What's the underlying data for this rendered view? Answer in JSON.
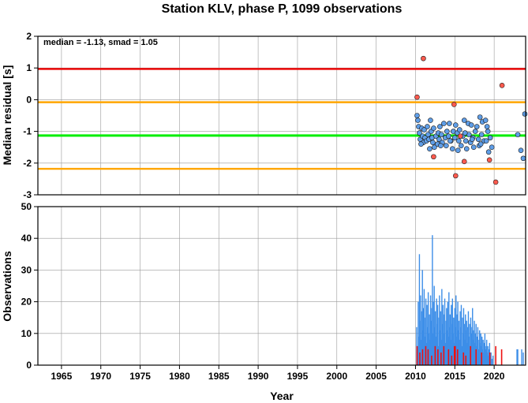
{
  "chart_data": [
    {
      "type": "scatter",
      "title": "Station KLV, phase P, 1099 observations",
      "ylabel": "Median residual [s]",
      "annotation": "median = -1.13, smad = 1.05",
      "xlim": [
        1962,
        2024
      ],
      "ylim": [
        -3,
        2
      ],
      "yticks": [
        "-3",
        "-2",
        "-1",
        "0",
        "1",
        "2"
      ],
      "grid": true,
      "reference_lines": [
        {
          "y": -1.13,
          "color": "#00ee00"
        },
        {
          "y": 0.97,
          "color": "#ee0000"
        },
        {
          "y": -0.08,
          "color": "#ffa500"
        },
        {
          "y": -2.18,
          "color": "#ffa500"
        }
      ],
      "series": [
        {
          "color": "#5f9ee8",
          "points": [
            [
              2010.2,
              -0.5
            ],
            [
              2010.3,
              -0.65
            ],
            [
              2010.4,
              -0.85
            ],
            [
              2010.5,
              -1.05
            ],
            [
              2010.6,
              -1.25
            ],
            [
              2010.8,
              -0.9
            ],
            [
              2010.9,
              -1.15
            ],
            [
              2011.0,
              -1.35
            ],
            [
              2011.1,
              -0.95
            ],
            [
              2011.2,
              -1.2
            ],
            [
              2011.4,
              -1.3
            ],
            [
              2011.5,
              -0.85
            ],
            [
              2011.6,
              -1.1
            ],
            [
              2011.7,
              -1.25
            ],
            [
              2011.9,
              -0.65
            ],
            [
              2012.0,
              -1.0
            ],
            [
              2012.1,
              -1.2
            ],
            [
              2012.3,
              -0.9
            ],
            [
              2012.4,
              -1.5
            ],
            [
              2012.6,
              -1.15
            ],
            [
              2012.8,
              -1.4
            ],
            [
              2012.9,
              -1.05
            ],
            [
              2013.0,
              -1.25
            ],
            [
              2013.1,
              -0.85
            ],
            [
              2013.3,
              -1.1
            ],
            [
              2013.4,
              -1.35
            ],
            [
              2013.6,
              -0.75
            ],
            [
              2013.8,
              -1.2
            ],
            [
              2013.9,
              -1.45
            ],
            [
              2014.0,
              -1.0
            ],
            [
              2014.2,
              -1.15
            ],
            [
              2014.3,
              -0.75
            ],
            [
              2014.5,
              -1.3
            ],
            [
              2014.7,
              -1.55
            ],
            [
              2014.8,
              -1.0
            ],
            [
              2015.0,
              -1.2
            ],
            [
              2015.1,
              -0.8
            ],
            [
              2015.3,
              -1.05
            ],
            [
              2015.5,
              -1.3
            ],
            [
              2015.6,
              -0.95
            ],
            [
              2015.8,
              -1.45
            ],
            [
              2016.0,
              -1.15
            ],
            [
              2016.2,
              -0.65
            ],
            [
              2016.4,
              -1.3
            ],
            [
              2016.5,
              -1.55
            ],
            [
              2016.7,
              -0.75
            ],
            [
              2016.8,
              -1.1
            ],
            [
              2017.0,
              -1.35
            ],
            [
              2017.1,
              -0.8
            ],
            [
              2017.3,
              -1.2
            ],
            [
              2017.4,
              -1.5
            ],
            [
              2017.6,
              -1.0
            ],
            [
              2017.8,
              -0.85
            ],
            [
              2018.0,
              -1.25
            ],
            [
              2018.1,
              -1.45
            ],
            [
              2018.2,
              -0.55
            ],
            [
              2018.4,
              -1.1
            ],
            [
              2018.5,
              -0.7
            ],
            [
              2018.7,
              -1.3
            ],
            [
              2018.9,
              -0.65
            ],
            [
              2019.1,
              -0.85
            ],
            [
              2019.2,
              -1.0
            ],
            [
              2019.3,
              -1.65
            ],
            [
              2019.5,
              -1.2
            ],
            [
              2019.7,
              -1.5
            ],
            [
              2010.7,
              -1.4
            ],
            [
              2011.8,
              -1.55
            ],
            [
              2012.2,
              -1.35
            ],
            [
              2013.2,
              -1.45
            ],
            [
              2014.4,
              -1.3
            ],
            [
              2015.4,
              -1.6
            ],
            [
              2016.3,
              -1.05
            ],
            [
              2017.2,
              -1.25
            ],
            [
              2018.3,
              -1.4
            ],
            [
              2019.0,
              -1.3
            ],
            [
              2023.0,
              -1.1
            ],
            [
              2023.4,
              -1.6
            ],
            [
              2023.7,
              -1.85
            ],
            [
              2023.9,
              -0.45
            ]
          ]
        },
        {
          "color": "#ff5a4e",
          "points": [
            [
              2010.2,
              0.08
            ],
            [
              2011.0,
              1.3
            ],
            [
              2012.3,
              -1.8
            ],
            [
              2014.9,
              -0.15
            ],
            [
              2015.1,
              -2.4
            ],
            [
              2016.2,
              -1.95
            ],
            [
              2019.4,
              -1.9
            ],
            [
              2020.2,
              -2.6
            ],
            [
              2021.0,
              0.45
            ],
            [
              2015.7,
              -1.15
            ]
          ]
        }
      ]
    },
    {
      "type": "bar",
      "ylabel": "Observations",
      "xlabel": "Year",
      "xlim": [
        1962,
        2024
      ],
      "ylim": [
        0,
        50
      ],
      "xticks": [
        "1965",
        "1970",
        "1975",
        "1980",
        "1985",
        "1990",
        "1995",
        "2000",
        "2005",
        "2010",
        "2015",
        "2020"
      ],
      "yticks": [
        "0",
        "10",
        "20",
        "30",
        "40",
        "50"
      ],
      "grid": true,
      "colors": {
        "blue": "#3d8ee8",
        "red": "#ee1111"
      },
      "blue_bars": [
        [
          2010.15,
          12
        ],
        [
          2010.25,
          6
        ],
        [
          2010.35,
          20
        ],
        [
          2010.42,
          9
        ],
        [
          2010.5,
          35
        ],
        [
          2010.58,
          14
        ],
        [
          2010.65,
          22
        ],
        [
          2010.72,
          8
        ],
        [
          2010.8,
          17
        ],
        [
          2010.88,
          30
        ],
        [
          2010.95,
          11
        ],
        [
          2011.02,
          18
        ],
        [
          2011.1,
          24
        ],
        [
          2011.18,
          9
        ],
        [
          2011.25,
          15
        ],
        [
          2011.32,
          21
        ],
        [
          2011.4,
          7
        ],
        [
          2011.47,
          19
        ],
        [
          2011.55,
          12
        ],
        [
          2011.62,
          23
        ],
        [
          2011.7,
          10
        ],
        [
          2011.78,
          16
        ],
        [
          2011.85,
          8
        ],
        [
          2011.92,
          22
        ],
        [
          2012.0,
          14
        ],
        [
          2012.08,
          18
        ],
        [
          2012.15,
          41
        ],
        [
          2012.22,
          10
        ],
        [
          2012.3,
          20
        ],
        [
          2012.38,
          25
        ],
        [
          2012.45,
          12
        ],
        [
          2012.52,
          17
        ],
        [
          2012.6,
          9
        ],
        [
          2012.68,
          21
        ],
        [
          2012.75,
          13
        ],
        [
          2012.82,
          19
        ],
        [
          2012.9,
          6
        ],
        [
          2012.98,
          15
        ],
        [
          2013.05,
          22
        ],
        [
          2013.12,
          11
        ],
        [
          2013.2,
          17
        ],
        [
          2013.28,
          8
        ],
        [
          2013.35,
          24
        ],
        [
          2013.42,
          13
        ],
        [
          2013.5,
          19
        ],
        [
          2013.58,
          10
        ],
        [
          2013.65,
          16
        ],
        [
          2013.72,
          21
        ],
        [
          2013.8,
          7
        ],
        [
          2013.88,
          14
        ],
        [
          2013.95,
          18
        ],
        [
          2014.02,
          11
        ],
        [
          2014.1,
          20
        ],
        [
          2014.18,
          9
        ],
        [
          2014.25,
          23
        ],
        [
          2014.32,
          12
        ],
        [
          2014.4,
          16
        ],
        [
          2014.48,
          8
        ],
        [
          2014.55,
          19
        ],
        [
          2014.62,
          13
        ],
        [
          2014.7,
          21
        ],
        [
          2014.78,
          10
        ],
        [
          2014.85,
          15
        ],
        [
          2014.92,
          7
        ],
        [
          2015.0,
          18
        ],
        [
          2015.08,
          12
        ],
        [
          2015.15,
          22
        ],
        [
          2015.22,
          9
        ],
        [
          2015.3,
          16
        ],
        [
          2015.38,
          20
        ],
        [
          2015.45,
          11
        ],
        [
          2015.52,
          14
        ],
        [
          2015.6,
          8
        ],
        [
          2015.68,
          17
        ],
        [
          2015.75,
          12
        ],
        [
          2015.82,
          19
        ],
        [
          2015.9,
          6
        ],
        [
          2015.98,
          15
        ],
        [
          2016.05,
          10
        ],
        [
          2016.12,
          18
        ],
        [
          2016.2,
          13
        ],
        [
          2016.28,
          8
        ],
        [
          2016.35,
          16
        ],
        [
          2016.42,
          11
        ],
        [
          2016.5,
          14
        ],
        [
          2016.58,
          7
        ],
        [
          2016.65,
          12
        ],
        [
          2016.72,
          17
        ],
        [
          2016.8,
          9
        ],
        [
          2016.88,
          13
        ],
        [
          2016.95,
          6
        ],
        [
          2017.02,
          15
        ],
        [
          2017.1,
          10
        ],
        [
          2017.18,
          12
        ],
        [
          2017.25,
          18
        ],
        [
          2017.32,
          8
        ],
        [
          2017.4,
          11
        ],
        [
          2017.48,
          14
        ],
        [
          2017.55,
          7
        ],
        [
          2017.62,
          10
        ],
        [
          2017.7,
          13
        ],
        [
          2017.78,
          6
        ],
        [
          2017.85,
          9
        ],
        [
          2017.92,
          12
        ],
        [
          2018.0,
          5
        ],
        [
          2018.08,
          8
        ],
        [
          2018.15,
          11
        ],
        [
          2018.22,
          7
        ],
        [
          2018.3,
          10
        ],
        [
          2018.38,
          6
        ],
        [
          2018.45,
          9
        ],
        [
          2018.52,
          5
        ],
        [
          2018.6,
          8
        ],
        [
          2018.68,
          4
        ],
        [
          2018.75,
          7
        ],
        [
          2018.82,
          10
        ],
        [
          2018.9,
          5
        ],
        [
          2018.98,
          6
        ],
        [
          2019.05,
          8
        ],
        [
          2019.12,
          4
        ],
        [
          2019.2,
          6
        ],
        [
          2019.28,
          3
        ],
        [
          2019.35,
          5
        ],
        [
          2019.42,
          7
        ],
        [
          2019.5,
          3
        ],
        [
          2019.6,
          4
        ],
        [
          2019.7,
          2
        ],
        [
          2019.85,
          3
        ],
        [
          2022.9,
          5
        ],
        [
          2023.0,
          5
        ],
        [
          2023.5,
          5
        ],
        [
          2023.7,
          4
        ]
      ],
      "red_bars": [
        [
          2010.2,
          6
        ],
        [
          2010.55,
          4
        ],
        [
          2010.9,
          5
        ],
        [
          2011.3,
          6
        ],
        [
          2011.6,
          5
        ],
        [
          2012.05,
          3
        ],
        [
          2012.5,
          6
        ],
        [
          2012.85,
          5
        ],
        [
          2013.25,
          4
        ],
        [
          2013.6,
          6
        ],
        [
          2014.2,
          5
        ],
        [
          2014.6,
          3
        ],
        [
          2014.95,
          6
        ],
        [
          2015.05,
          6
        ],
        [
          2015.35,
          5
        ],
        [
          2016.1,
          4
        ],
        [
          2016.4,
          3
        ],
        [
          2017.0,
          6
        ],
        [
          2017.7,
          5
        ],
        [
          2018.4,
          4
        ],
        [
          2019.45,
          4
        ],
        [
          2020.2,
          6
        ],
        [
          2020.95,
          5
        ]
      ]
    }
  ]
}
